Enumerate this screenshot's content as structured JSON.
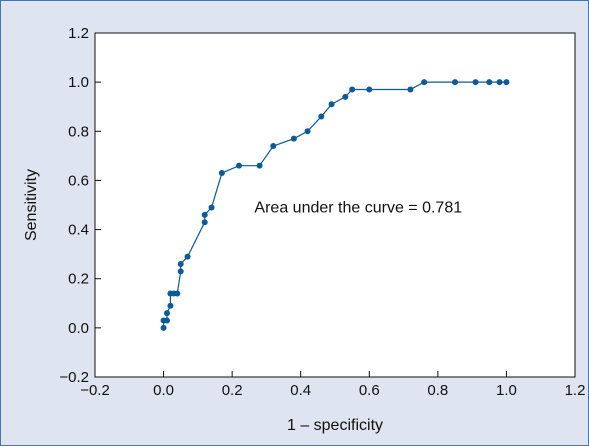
{
  "chart_data": {
    "type": "line",
    "title": "",
    "xlabel": "1 – specificity",
    "ylabel": "Sensitivity",
    "xlim": [
      -0.2,
      1.2
    ],
    "ylim": [
      -0.2,
      1.2
    ],
    "xticks": [
      -0.2,
      0.0,
      0.2,
      0.4,
      0.6,
      0.8,
      1.0,
      1.2
    ],
    "yticks": [
      -0.2,
      0.0,
      0.2,
      0.4,
      0.6,
      0.8,
      1.0,
      1.2
    ],
    "xtick_labels": [
      "−0.2",
      "0.0",
      "0.2",
      "0.4",
      "0.6",
      "0.8",
      "1.0",
      "1.2"
    ],
    "ytick_labels": [
      "−0.2",
      "0.0",
      "0.2",
      "0.4",
      "0.6",
      "0.8",
      "1.0",
      "1.2"
    ],
    "grid": false,
    "annotation": "Area under the curve = 0.781",
    "annotation_pos": [
      0.23,
      0.47
    ],
    "series": [
      {
        "color": "#0b5a9a",
        "x": [
          0.0,
          0.0,
          0.01,
          0.01,
          0.02,
          0.02,
          0.03,
          0.04,
          0.05,
          0.05,
          0.07,
          0.12,
          0.12,
          0.14,
          0.17,
          0.22,
          0.28,
          0.32,
          0.38,
          0.42,
          0.46,
          0.49,
          0.53,
          0.55,
          0.6,
          0.72,
          0.76,
          0.85,
          0.91,
          0.95,
          0.98,
          1.0
        ],
        "y": [
          0.0,
          0.03,
          0.03,
          0.06,
          0.09,
          0.14,
          0.14,
          0.14,
          0.23,
          0.26,
          0.29,
          0.43,
          0.46,
          0.49,
          0.63,
          0.66,
          0.66,
          0.74,
          0.77,
          0.8,
          0.86,
          0.91,
          0.94,
          0.97,
          0.97,
          0.97,
          1.0,
          1.0,
          1.0,
          1.0,
          1.0,
          1.0
        ]
      }
    ]
  }
}
